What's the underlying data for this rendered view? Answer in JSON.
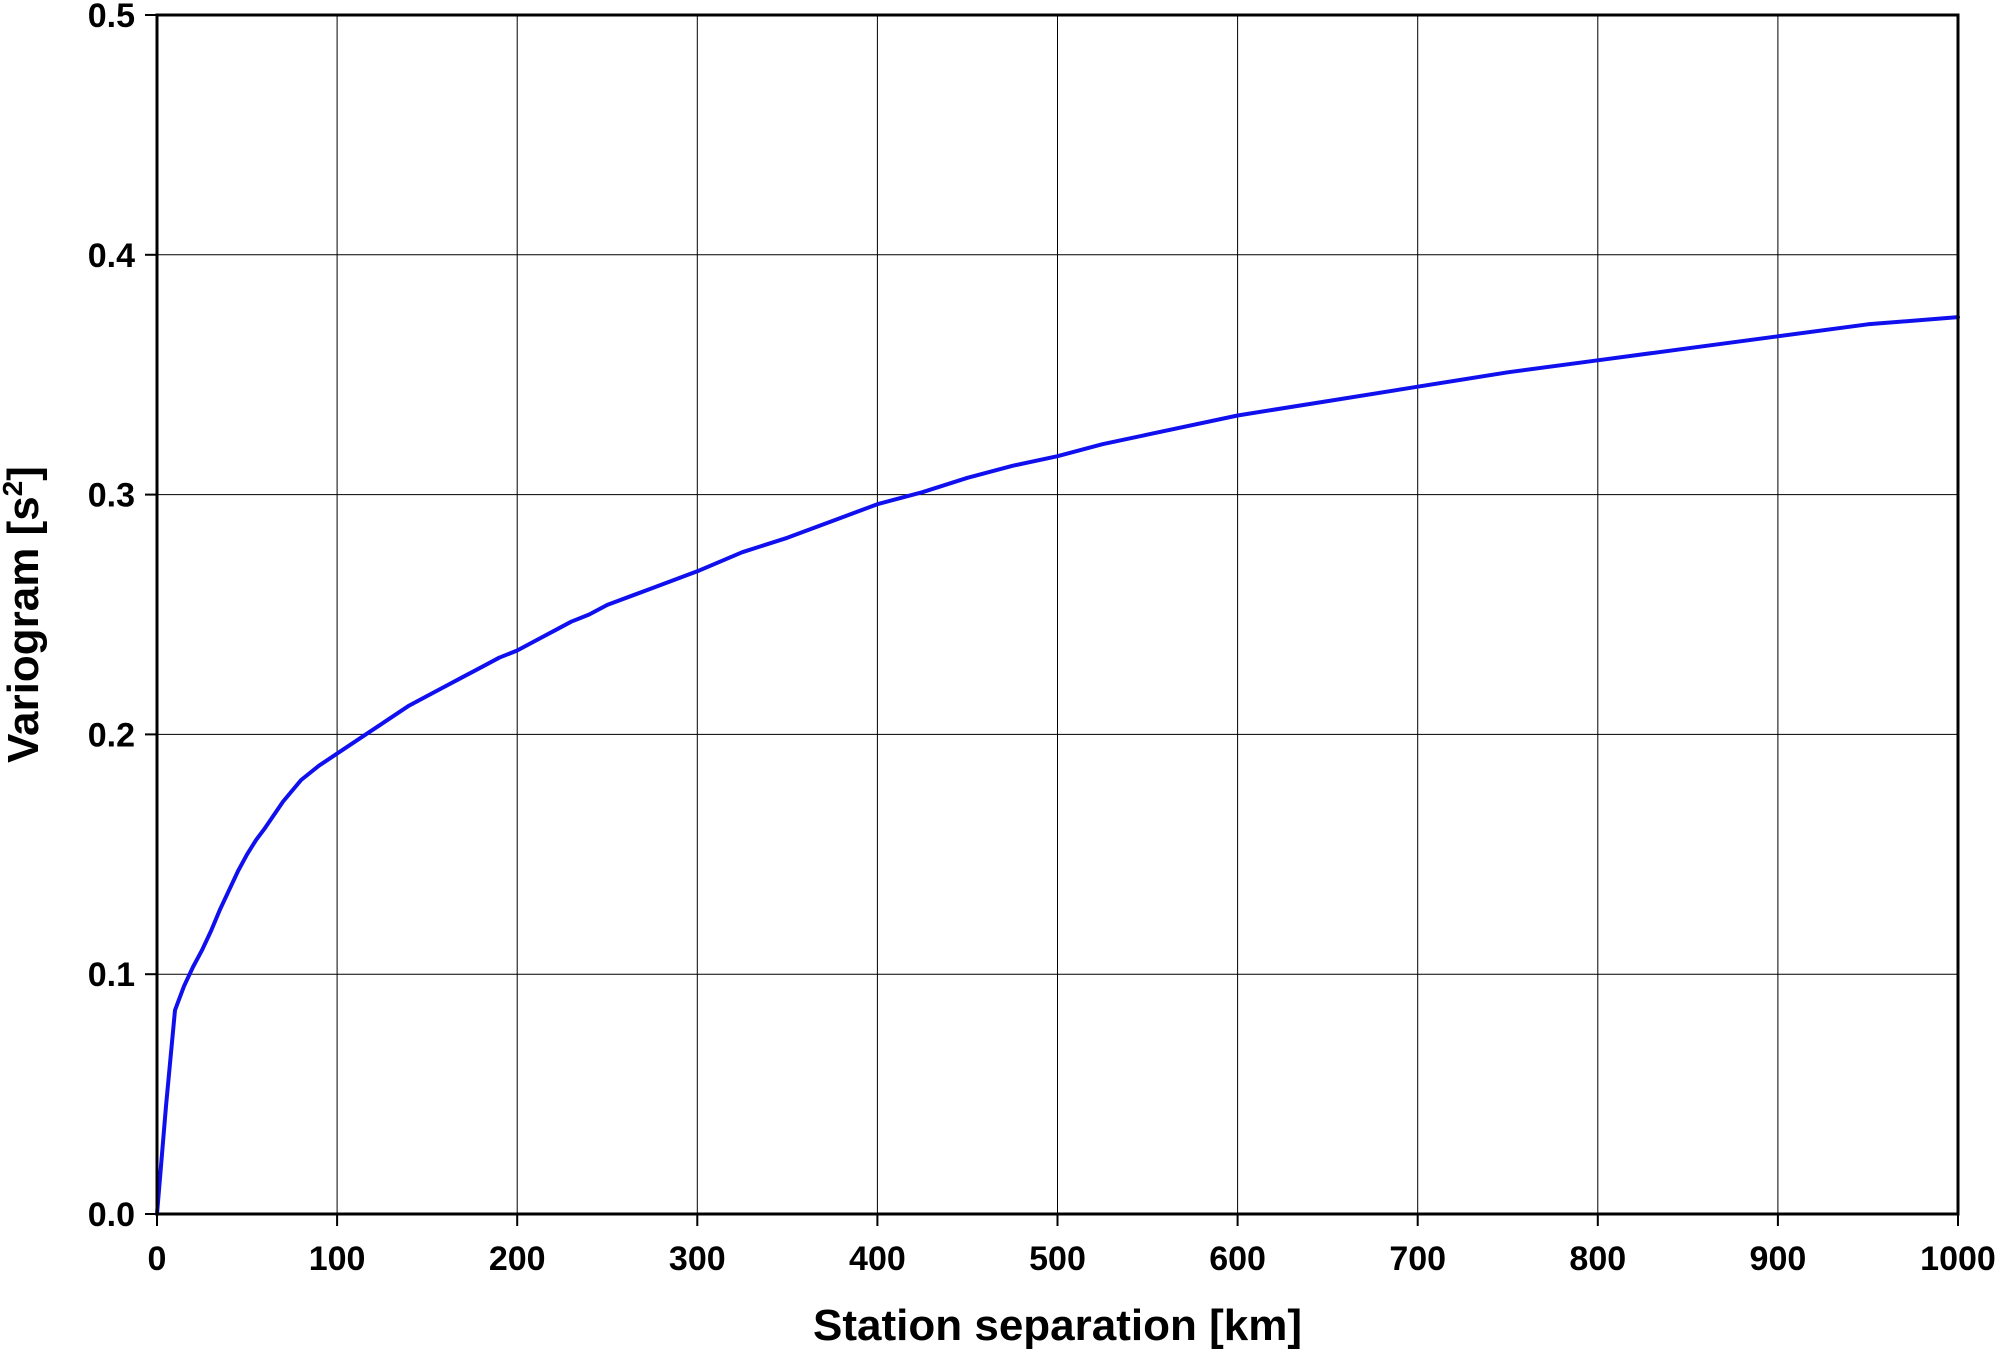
{
  "chart_data": {
    "type": "line",
    "title": "",
    "xlabel": "Station separation [km]",
    "ylabel": {
      "main": "Variogram [s",
      "superscript": "2",
      "suffix": "]"
    },
    "xlim": [
      0,
      1000
    ],
    "ylim": [
      0.0,
      0.5
    ],
    "x_ticks": [
      0,
      100,
      200,
      300,
      400,
      500,
      600,
      700,
      800,
      900,
      1000
    ],
    "x_tick_labels": [
      "0",
      "100",
      "200",
      "300",
      "400",
      "500",
      "600",
      "700",
      "800",
      "900",
      "1000"
    ],
    "y_ticks": [
      0.0,
      0.1,
      0.2,
      0.3,
      0.4,
      0.5
    ],
    "y_tick_labels": [
      "0.0",
      "0.1",
      "0.2",
      "0.3",
      "0.4",
      "0.5"
    ],
    "grid": true,
    "legend": "none",
    "series": [
      {
        "color": "#1010ee",
        "x": [
          0,
          5,
          10,
          15,
          20,
          25,
          30,
          35,
          40,
          45,
          50,
          55,
          60,
          70,
          80,
          90,
          100,
          110,
          120,
          130,
          140,
          150,
          160,
          170,
          180,
          190,
          200,
          210,
          220,
          230,
          240,
          250,
          275,
          300,
          325,
          350,
          375,
          400,
          425,
          450,
          475,
          500,
          525,
          550,
          600,
          650,
          700,
          750,
          800,
          850,
          900,
          950,
          1000
        ],
        "y": [
          0.0,
          0.045,
          0.085,
          0.095,
          0.103,
          0.11,
          0.118,
          0.127,
          0.135,
          0.143,
          0.15,
          0.156,
          0.161,
          0.172,
          0.181,
          0.187,
          0.192,
          0.197,
          0.202,
          0.207,
          0.212,
          0.216,
          0.22,
          0.224,
          0.228,
          0.232,
          0.235,
          0.239,
          0.243,
          0.247,
          0.25,
          0.254,
          0.261,
          0.268,
          0.276,
          0.282,
          0.289,
          0.296,
          0.301,
          0.307,
          0.312,
          0.316,
          0.321,
          0.325,
          0.333,
          0.339,
          0.345,
          0.351,
          0.356,
          0.361,
          0.366,
          0.371,
          0.374
        ]
      }
    ]
  }
}
